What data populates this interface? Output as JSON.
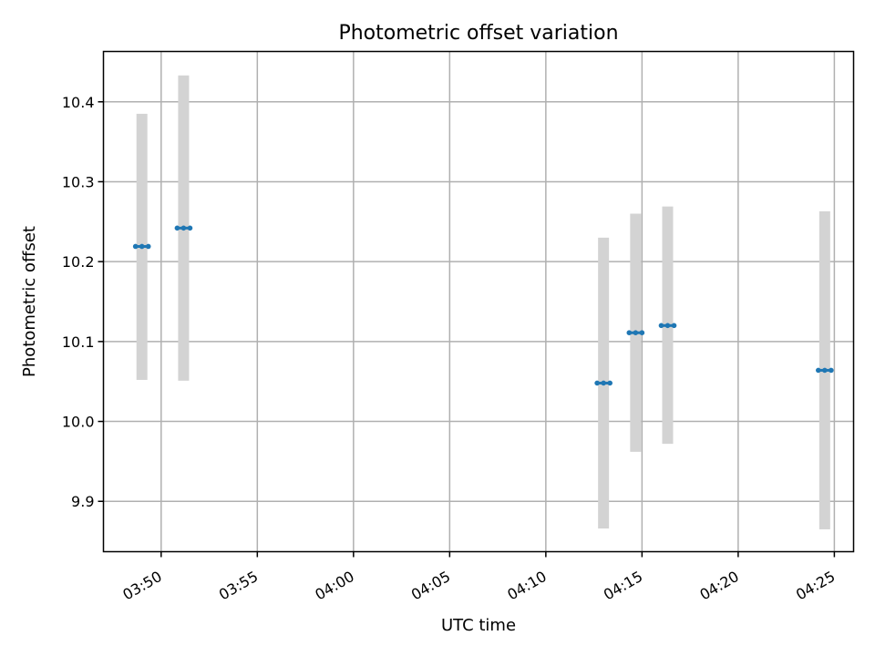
{
  "chart_data": {
    "type": "scatter",
    "title": "Photometric offset variation",
    "xlabel": "UTC time",
    "ylabel": "Photometric offset",
    "x_ticks": [
      "03:50",
      "03:55",
      "04:00",
      "04:05",
      "04:10",
      "04:15",
      "04:20",
      "04:25"
    ],
    "y_ticks": [
      9.9,
      10.0,
      10.1,
      10.2,
      10.3,
      10.4
    ],
    "xlim": [
      "03:47",
      "04:26"
    ],
    "ylim": [
      9.837,
      10.463
    ],
    "grid": true,
    "errorbar_color": "#d3d3d3",
    "marker_color": "#1f77b4",
    "points": [
      {
        "t_start": "03:48:40",
        "t_end": "03:49:20",
        "value": 10.219,
        "err_low": 10.052,
        "err_high": 10.385
      },
      {
        "t_start": "03:50:50",
        "t_end": "03:51:30",
        "value": 10.242,
        "err_low": 10.051,
        "err_high": 10.433
      },
      {
        "t_start": "04:12:40",
        "t_end": "04:13:20",
        "value": 10.048,
        "err_low": 9.866,
        "err_high": 10.23
      },
      {
        "t_start": "04:14:20",
        "t_end": "04:15:00",
        "value": 10.111,
        "err_low": 9.962,
        "err_high": 10.26
      },
      {
        "t_start": "04:16:00",
        "t_end": "04:16:40",
        "value": 10.12,
        "err_low": 9.972,
        "err_high": 10.269
      },
      {
        "t_start": "04:24:10",
        "t_end": "04:24:50",
        "value": 10.064,
        "err_low": 9.865,
        "err_high": 10.263
      }
    ]
  }
}
